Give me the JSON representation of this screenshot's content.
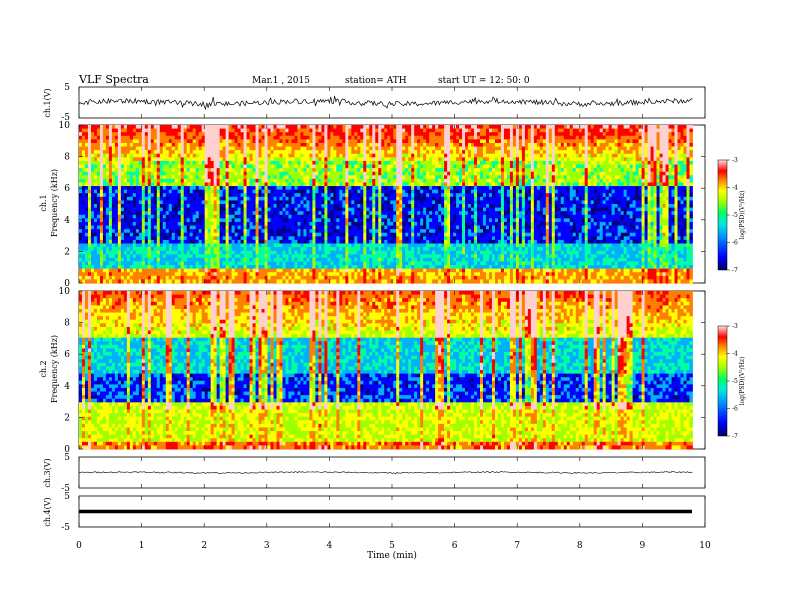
{
  "header": {
    "title": "VLF  Spectra",
    "date": "Mar.1  , 2015",
    "station": "station= ATH",
    "start_ut": "start  UT =   12: 50: 0"
  },
  "chart_data": [
    {
      "type": "line",
      "name_label": "ch.1(V)",
      "ylim": [
        -5,
        5
      ],
      "y_ticks": [
        "5",
        "-5"
      ],
      "description_level": "noisy waveform around 0 V, amplitude ~1 V"
    },
    {
      "type": "heatmap",
      "channel_label": "ch.1",
      "ylabel": "Frequency  (kHz)",
      "xlim": [
        0,
        10
      ],
      "ylim": [
        0,
        10
      ],
      "y_ticks": [
        "0",
        "2",
        "4",
        "6",
        "8",
        "10"
      ],
      "data_end_min": 9.8,
      "colorbar": {
        "label": "log(PSD)(V²/Hz)",
        "range": [
          -7,
          -3
        ],
        "ticks": [
          "-3",
          "-4",
          "-5",
          "-6",
          "-7"
        ]
      }
    },
    {
      "type": "heatmap",
      "channel_label": "ch.2",
      "ylabel": "Frequency  (kHz)",
      "xlim": [
        0,
        10
      ],
      "ylim": [
        0,
        10
      ],
      "y_ticks": [
        "0",
        "2",
        "4",
        "6",
        "8",
        "10"
      ],
      "data_end_min": 9.8,
      "colorbar": {
        "label": "log(PSD)(V²/Hz)",
        "range": [
          -7,
          -3
        ],
        "ticks": [
          "-3",
          "-4",
          "-5",
          "-6",
          "-7"
        ]
      }
    },
    {
      "type": "line",
      "name_label": "ch.3(V)",
      "ylim": [
        -5,
        5
      ],
      "y_ticks": [
        "5",
        "-5"
      ],
      "description_level": "near-flat trace around 0 V"
    },
    {
      "type": "line",
      "name_label": "ch.4(V)",
      "ylim": [
        -5,
        5
      ],
      "y_ticks": [
        "5",
        "-5"
      ],
      "description_level": "thick flat trace around 0 V"
    }
  ],
  "x_axis": {
    "label": "Time  (min)",
    "ticks": [
      "0",
      "1",
      "2",
      "3",
      "4",
      "5",
      "6",
      "7",
      "8",
      "9",
      "10"
    ],
    "range": [
      0,
      10
    ]
  },
  "colors": {
    "spectrum": [
      "#000080",
      "#0000ff",
      "#00b0ff",
      "#00ffa0",
      "#a0ff00",
      "#ffff00",
      "#ff8000",
      "#ff0000",
      "#ffd0d0"
    ],
    "trace": "#000000"
  }
}
